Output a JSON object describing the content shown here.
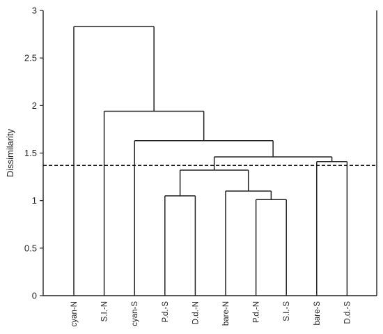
{
  "chart_data": {
    "type": "dendrogram",
    "ylabel": "Dissimilarity",
    "ylim": [
      0,
      3
    ],
    "yticks": [
      "0",
      "0.5",
      "1",
      "1.5",
      "2",
      "2.5",
      "3"
    ],
    "ytick_values": [
      0,
      0.5,
      1,
      1.5,
      2,
      2.5,
      3
    ],
    "leaves": [
      "cyan-N",
      "S.I.-N",
      "cyan-S",
      "P.d.-S",
      "D.d.-N",
      "bare-N",
      "P.d.-N",
      "S.I.-S",
      "bare-S",
      "D.d.-S"
    ],
    "merges": [
      {
        "a": "leaf:3",
        "b": "leaf:4",
        "height": 1.05
      },
      {
        "a": "leaf:6",
        "b": "leaf:7",
        "height": 1.01
      },
      {
        "a": "leaf:5",
        "b": "node:1",
        "height": 1.1
      },
      {
        "a": "node:0",
        "b": "node:2",
        "height": 1.32
      },
      {
        "a": "leaf:8",
        "b": "leaf:9",
        "height": 1.41
      },
      {
        "a": "node:3",
        "b": "node:4",
        "height": 1.46
      },
      {
        "a": "leaf:2",
        "b": "node:5",
        "height": 1.63
      },
      {
        "a": "leaf:1",
        "b": "node:6",
        "height": 1.94
      },
      {
        "a": "leaf:0",
        "b": "node:7",
        "height": 2.83
      }
    ],
    "cut_line": 1.37,
    "line_color": "#222222"
  }
}
